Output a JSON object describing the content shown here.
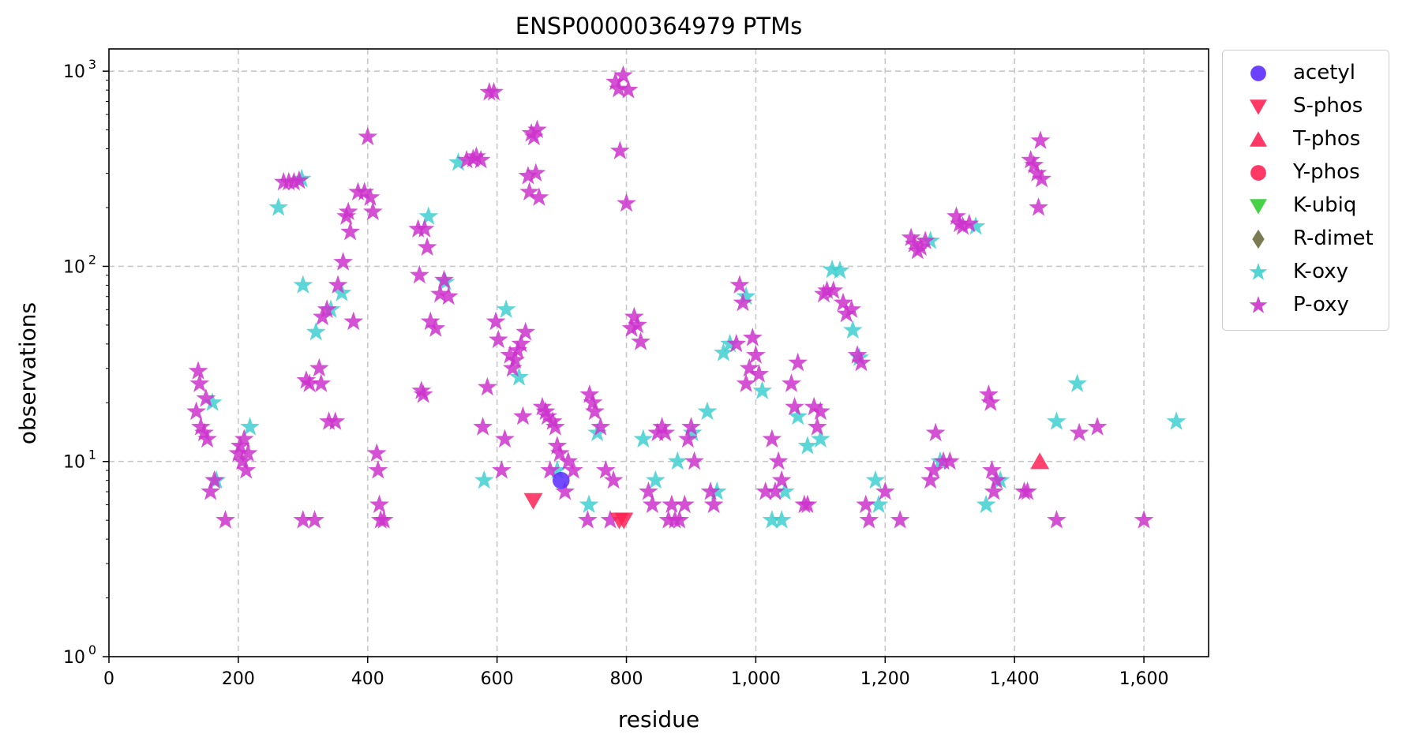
{
  "chart_data": {
    "type": "scatter",
    "title": "ENSP00000364979 PTMs",
    "xlabel": "residue",
    "ylabel": "observations",
    "xlim": [
      0,
      1700
    ],
    "ylim": [
      1,
      1300
    ],
    "yscale": "log",
    "grid": true,
    "legend_position": "outside-right-top",
    "x_ticks": [
      "0",
      "200",
      "400",
      "600",
      "800",
      "1,000",
      "1,200",
      "1,400",
      "1,600"
    ],
    "x_tick_values": [
      0,
      200,
      400,
      600,
      800,
      1000,
      1200,
      1400,
      1600
    ],
    "y_ticks": [
      "10",
      "10",
      "10",
      "10"
    ],
    "y_tick_exponents": [
      "0",
      "1",
      "2",
      "3"
    ],
    "y_tick_values": [
      1,
      10,
      100,
      1000
    ],
    "series": [
      {
        "name": "acetyl",
        "marker": "circle",
        "color": "#5b2bff",
        "points": [
          [
            699,
            8
          ]
        ]
      },
      {
        "name": "S-phos",
        "marker": "triangle-down",
        "color": "#ff2255",
        "points": [
          [
            656,
            6.3
          ],
          [
            789,
            5
          ],
          [
            796,
            5
          ]
        ]
      },
      {
        "name": "T-phos",
        "marker": "triangle-up",
        "color": "#ff2255",
        "points": [
          [
            1439,
            10
          ]
        ]
      },
      {
        "name": "Y-phos",
        "marker": "circle",
        "color": "#ff2255",
        "points": []
      },
      {
        "name": "K-ubiq",
        "marker": "triangle-down",
        "color": "#33cc33",
        "points": []
      },
      {
        "name": "R-dimet",
        "marker": "diamond",
        "color": "#6b6b40",
        "points": []
      },
      {
        "name": "K-oxy",
        "marker": "star",
        "color": "#3fcfcf",
        "points": [
          [
            262,
            200
          ],
          [
            300,
            80
          ],
          [
            320,
            46
          ],
          [
            343,
            60
          ],
          [
            360,
            73
          ],
          [
            298,
            280
          ],
          [
            540,
            340
          ],
          [
            494,
            180
          ],
          [
            520,
            83
          ],
          [
            614,
            60
          ],
          [
            634,
            27
          ],
          [
            580,
            8
          ],
          [
            160,
            20
          ],
          [
            166,
            8
          ],
          [
            218,
            15
          ],
          [
            693,
            9
          ],
          [
            742,
            6
          ],
          [
            755,
            14
          ],
          [
            826,
            13
          ],
          [
            845,
            8
          ],
          [
            879,
            10
          ],
          [
            902,
            14
          ],
          [
            925,
            18
          ],
          [
            940,
            7
          ],
          [
            950,
            36
          ],
          [
            960,
            40
          ],
          [
            985,
            70
          ],
          [
            1010,
            23
          ],
          [
            1025,
            5
          ],
          [
            1040,
            5
          ],
          [
            1045,
            7
          ],
          [
            1065,
            17
          ],
          [
            1080,
            12
          ],
          [
            1100,
            13
          ],
          [
            1118,
            96
          ],
          [
            1130,
            95
          ],
          [
            1150,
            47
          ],
          [
            1160,
            34
          ],
          [
            1185,
            8
          ],
          [
            1190,
            6
          ],
          [
            1270,
            135
          ],
          [
            1285,
            10
          ],
          [
            1340,
            160
          ],
          [
            1356,
            6
          ],
          [
            1378,
            8
          ],
          [
            1465,
            16
          ],
          [
            1497,
            25
          ],
          [
            1650,
            16
          ]
        ]
      },
      {
        "name": "P-oxy",
        "marker": "star",
        "color": "#cc33cc",
        "points": [
          [
            135,
            18
          ],
          [
            138,
            29
          ],
          [
            140,
            25
          ],
          [
            142,
            15
          ],
          [
            147,
            14
          ],
          [
            150,
            21
          ],
          [
            152,
            13
          ],
          [
            157,
            7
          ],
          [
            163,
            8
          ],
          [
            180,
            5
          ],
          [
            200,
            11
          ],
          [
            203,
            12
          ],
          [
            206,
            10
          ],
          [
            209,
            13
          ],
          [
            212,
            9
          ],
          [
            215,
            11
          ],
          [
            270,
            270
          ],
          [
            278,
            270
          ],
          [
            286,
            270
          ],
          [
            294,
            275
          ],
          [
            300,
            5
          ],
          [
            305,
            26
          ],
          [
            310,
            25
          ],
          [
            318,
            5
          ],
          [
            325,
            30
          ],
          [
            328,
            25
          ],
          [
            330,
            55
          ],
          [
            337,
            60
          ],
          [
            340,
            16
          ],
          [
            350,
            16
          ],
          [
            354,
            80
          ],
          [
            362,
            105
          ],
          [
            367,
            180
          ],
          [
            370,
            190
          ],
          [
            373,
            150
          ],
          [
            378,
            52
          ],
          [
            385,
            240
          ],
          [
            395,
            240
          ],
          [
            400,
            460
          ],
          [
            404,
            225
          ],
          [
            408,
            190
          ],
          [
            414,
            11
          ],
          [
            416,
            9
          ],
          [
            418,
            6
          ],
          [
            420,
            5
          ],
          [
            425,
            5
          ],
          [
            478,
            155
          ],
          [
            480,
            90
          ],
          [
            483,
            23
          ],
          [
            486,
            22
          ],
          [
            488,
            155
          ],
          [
            492,
            125
          ],
          [
            497,
            52
          ],
          [
            505,
            48
          ],
          [
            512,
            72
          ],
          [
            518,
            85
          ],
          [
            525,
            70
          ],
          [
            553,
            350
          ],
          [
            563,
            355
          ],
          [
            568,
            365
          ],
          [
            575,
            350
          ],
          [
            578,
            15
          ],
          [
            585,
            24
          ],
          [
            588,
            780
          ],
          [
            595,
            780
          ],
          [
            598,
            52
          ],
          [
            602,
            42
          ],
          [
            607,
            9
          ],
          [
            612,
            13
          ],
          [
            620,
            35
          ],
          [
            624,
            30
          ],
          [
            628,
            33
          ],
          [
            632,
            37
          ],
          [
            637,
            40
          ],
          [
            640,
            17
          ],
          [
            644,
            46
          ],
          [
            648,
            290
          ],
          [
            650,
            240
          ],
          [
            653,
            480
          ],
          [
            657,
            460
          ],
          [
            660,
            300
          ],
          [
            662,
            500
          ],
          [
            665,
            225
          ],
          [
            670,
            19
          ],
          [
            675,
            18
          ],
          [
            678,
            17
          ],
          [
            682,
            9
          ],
          [
            686,
            16
          ],
          [
            690,
            15
          ],
          [
            693,
            12
          ],
          [
            697,
            11
          ],
          [
            705,
            7
          ],
          [
            710,
            10
          ],
          [
            718,
            9
          ],
          [
            740,
            5
          ],
          [
            743,
            22
          ],
          [
            748,
            20
          ],
          [
            751,
            18
          ],
          [
            760,
            15
          ],
          [
            768,
            9
          ],
          [
            775,
            5
          ],
          [
            780,
            8
          ],
          [
            783,
            880
          ],
          [
            788,
            810
          ],
          [
            790,
            390
          ],
          [
            795,
            950
          ],
          [
            800,
            210
          ],
          [
            803,
            800
          ],
          [
            808,
            48
          ],
          [
            812,
            55
          ],
          [
            817,
            50
          ],
          [
            822,
            41
          ],
          [
            834,
            7
          ],
          [
            840,
            6
          ],
          [
            848,
            14
          ],
          [
            855,
            15
          ],
          [
            860,
            14
          ],
          [
            865,
            5
          ],
          [
            870,
            6
          ],
          [
            875,
            5
          ],
          [
            882,
            5
          ],
          [
            890,
            6
          ],
          [
            895,
            13
          ],
          [
            900,
            15
          ],
          [
            905,
            10
          ],
          [
            930,
            7
          ],
          [
            935,
            6
          ],
          [
            970,
            40
          ],
          [
            975,
            80
          ],
          [
            980,
            65
          ],
          [
            985,
            25
          ],
          [
            990,
            30
          ],
          [
            995,
            43
          ],
          [
            1000,
            35
          ],
          [
            1005,
            28
          ],
          [
            1015,
            7
          ],
          [
            1025,
            13
          ],
          [
            1030,
            7
          ],
          [
            1035,
            10
          ],
          [
            1040,
            8
          ],
          [
            1055,
            25
          ],
          [
            1060,
            19
          ],
          [
            1065,
            32
          ],
          [
            1075,
            6
          ],
          [
            1080,
            6
          ],
          [
            1090,
            19
          ],
          [
            1095,
            15
          ],
          [
            1100,
            18
          ],
          [
            1105,
            72
          ],
          [
            1110,
            75
          ],
          [
            1120,
            75
          ],
          [
            1135,
            65
          ],
          [
            1140,
            57
          ],
          [
            1148,
            60
          ],
          [
            1157,
            35
          ],
          [
            1163,
            32
          ],
          [
            1170,
            6
          ],
          [
            1175,
            5
          ],
          [
            1200,
            7
          ],
          [
            1223,
            5
          ],
          [
            1240,
            140
          ],
          [
            1245,
            130
          ],
          [
            1250,
            120
          ],
          [
            1255,
            125
          ],
          [
            1262,
            135
          ],
          [
            1270,
            8
          ],
          [
            1275,
            9
          ],
          [
            1278,
            14
          ],
          [
            1290,
            10
          ],
          [
            1300,
            10
          ],
          [
            1310,
            180
          ],
          [
            1315,
            165
          ],
          [
            1320,
            160
          ],
          [
            1330,
            165
          ],
          [
            1360,
            22
          ],
          [
            1363,
            20
          ],
          [
            1365,
            9
          ],
          [
            1368,
            7
          ],
          [
            1372,
            8
          ],
          [
            1415,
            7
          ],
          [
            1420,
            7
          ],
          [
            1425,
            350
          ],
          [
            1430,
            330
          ],
          [
            1435,
            300
          ],
          [
            1437,
            200
          ],
          [
            1440,
            440
          ],
          [
            1442,
            280
          ],
          [
            1465,
            5
          ],
          [
            1500,
            14
          ],
          [
            1528,
            15
          ],
          [
            1600,
            5
          ]
        ]
      }
    ]
  }
}
